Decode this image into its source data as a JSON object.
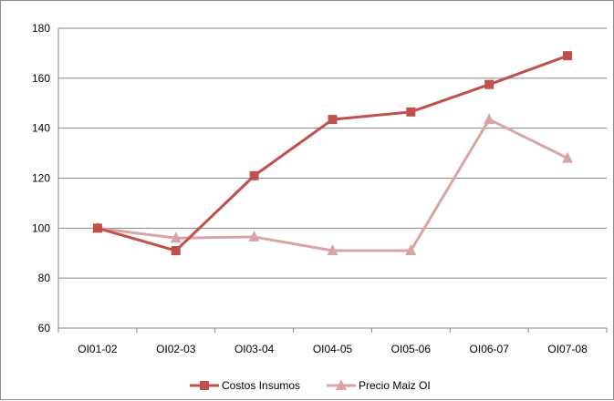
{
  "chart_data": {
    "type": "line",
    "title": "",
    "xlabel": "",
    "ylabel": "",
    "categories": [
      "OI01-02",
      "OI02-03",
      "OI03-04",
      "OI04-05",
      "OI05-06",
      "OI06-07",
      "OI07-08"
    ],
    "ylim": [
      60,
      180
    ],
    "yticks": [
      60,
      80,
      100,
      120,
      140,
      160,
      180
    ],
    "grid": "horizontal",
    "legend_position": "bottom",
    "series": [
      {
        "name": "Costos Insumos",
        "marker": "square",
        "color": "#c0504d",
        "values": [
          100,
          91,
          121,
          143.5,
          146.5,
          157.5,
          169
        ]
      },
      {
        "name": "Precio Maiz OI",
        "marker": "triangle",
        "color": "#d9a5a4",
        "values": [
          100,
          96,
          96.5,
          91,
          91,
          143.5,
          128
        ]
      }
    ]
  }
}
